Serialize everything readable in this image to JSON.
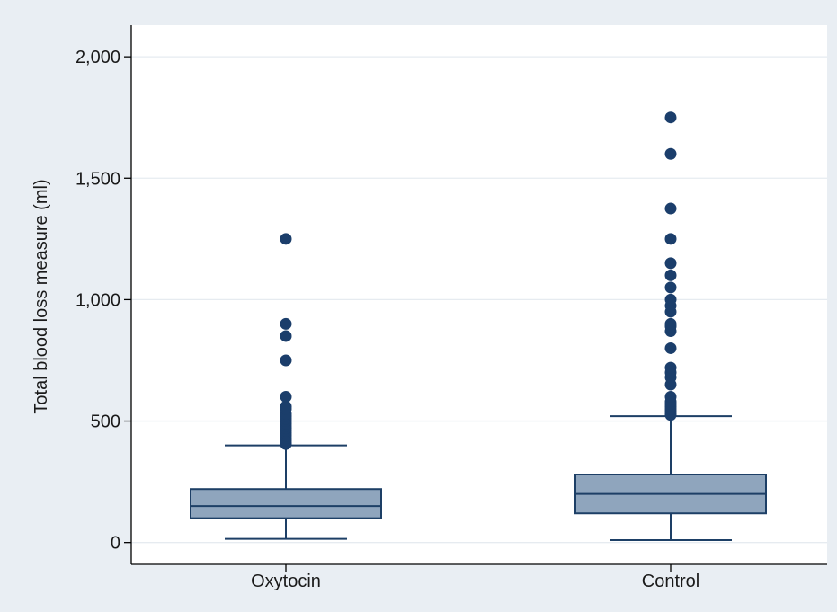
{
  "colors": {
    "outer_background": "#e9eef3",
    "plot_background": "#ffffff",
    "grid": "#e6ebf0",
    "box_fill": "#8fa5bd",
    "box_stroke": "#1d3f66",
    "outlier": "#1b3e6b",
    "axis": "#000000"
  },
  "chart_data": {
    "type": "box",
    "title": "",
    "xlabel": "",
    "ylabel": "Total blood loss measure (ml)",
    "ylim": [
      -90,
      2130
    ],
    "yticks": [
      0,
      500,
      1000,
      1500,
      2000
    ],
    "ytick_labels": [
      "0",
      "500",
      "1,000",
      "1,500",
      "2,000"
    ],
    "grid": true,
    "legend": "none",
    "categories": [
      "Oxytocin",
      "Control"
    ],
    "boxes": [
      {
        "name": "Oxytocin",
        "whisker_low": 15,
        "q1": 100,
        "median": 150,
        "q3": 220,
        "whisker_high": 400,
        "outliers": [
          405,
          410,
          420,
          430,
          440,
          450,
          460,
          470,
          480,
          490,
          500,
          510,
          520,
          530,
          550,
          560,
          600,
          750,
          850,
          900,
          1250
        ]
      },
      {
        "name": "Control",
        "whisker_low": 10,
        "q1": 120,
        "median": 200,
        "q3": 280,
        "whisker_high": 520,
        "outliers": [
          525,
          530,
          540,
          550,
          560,
          570,
          580,
          600,
          650,
          680,
          700,
          720,
          800,
          870,
          890,
          900,
          950,
          975,
          1000,
          1050,
          1100,
          1150,
          1250,
          1375,
          1600,
          1750
        ]
      }
    ]
  }
}
